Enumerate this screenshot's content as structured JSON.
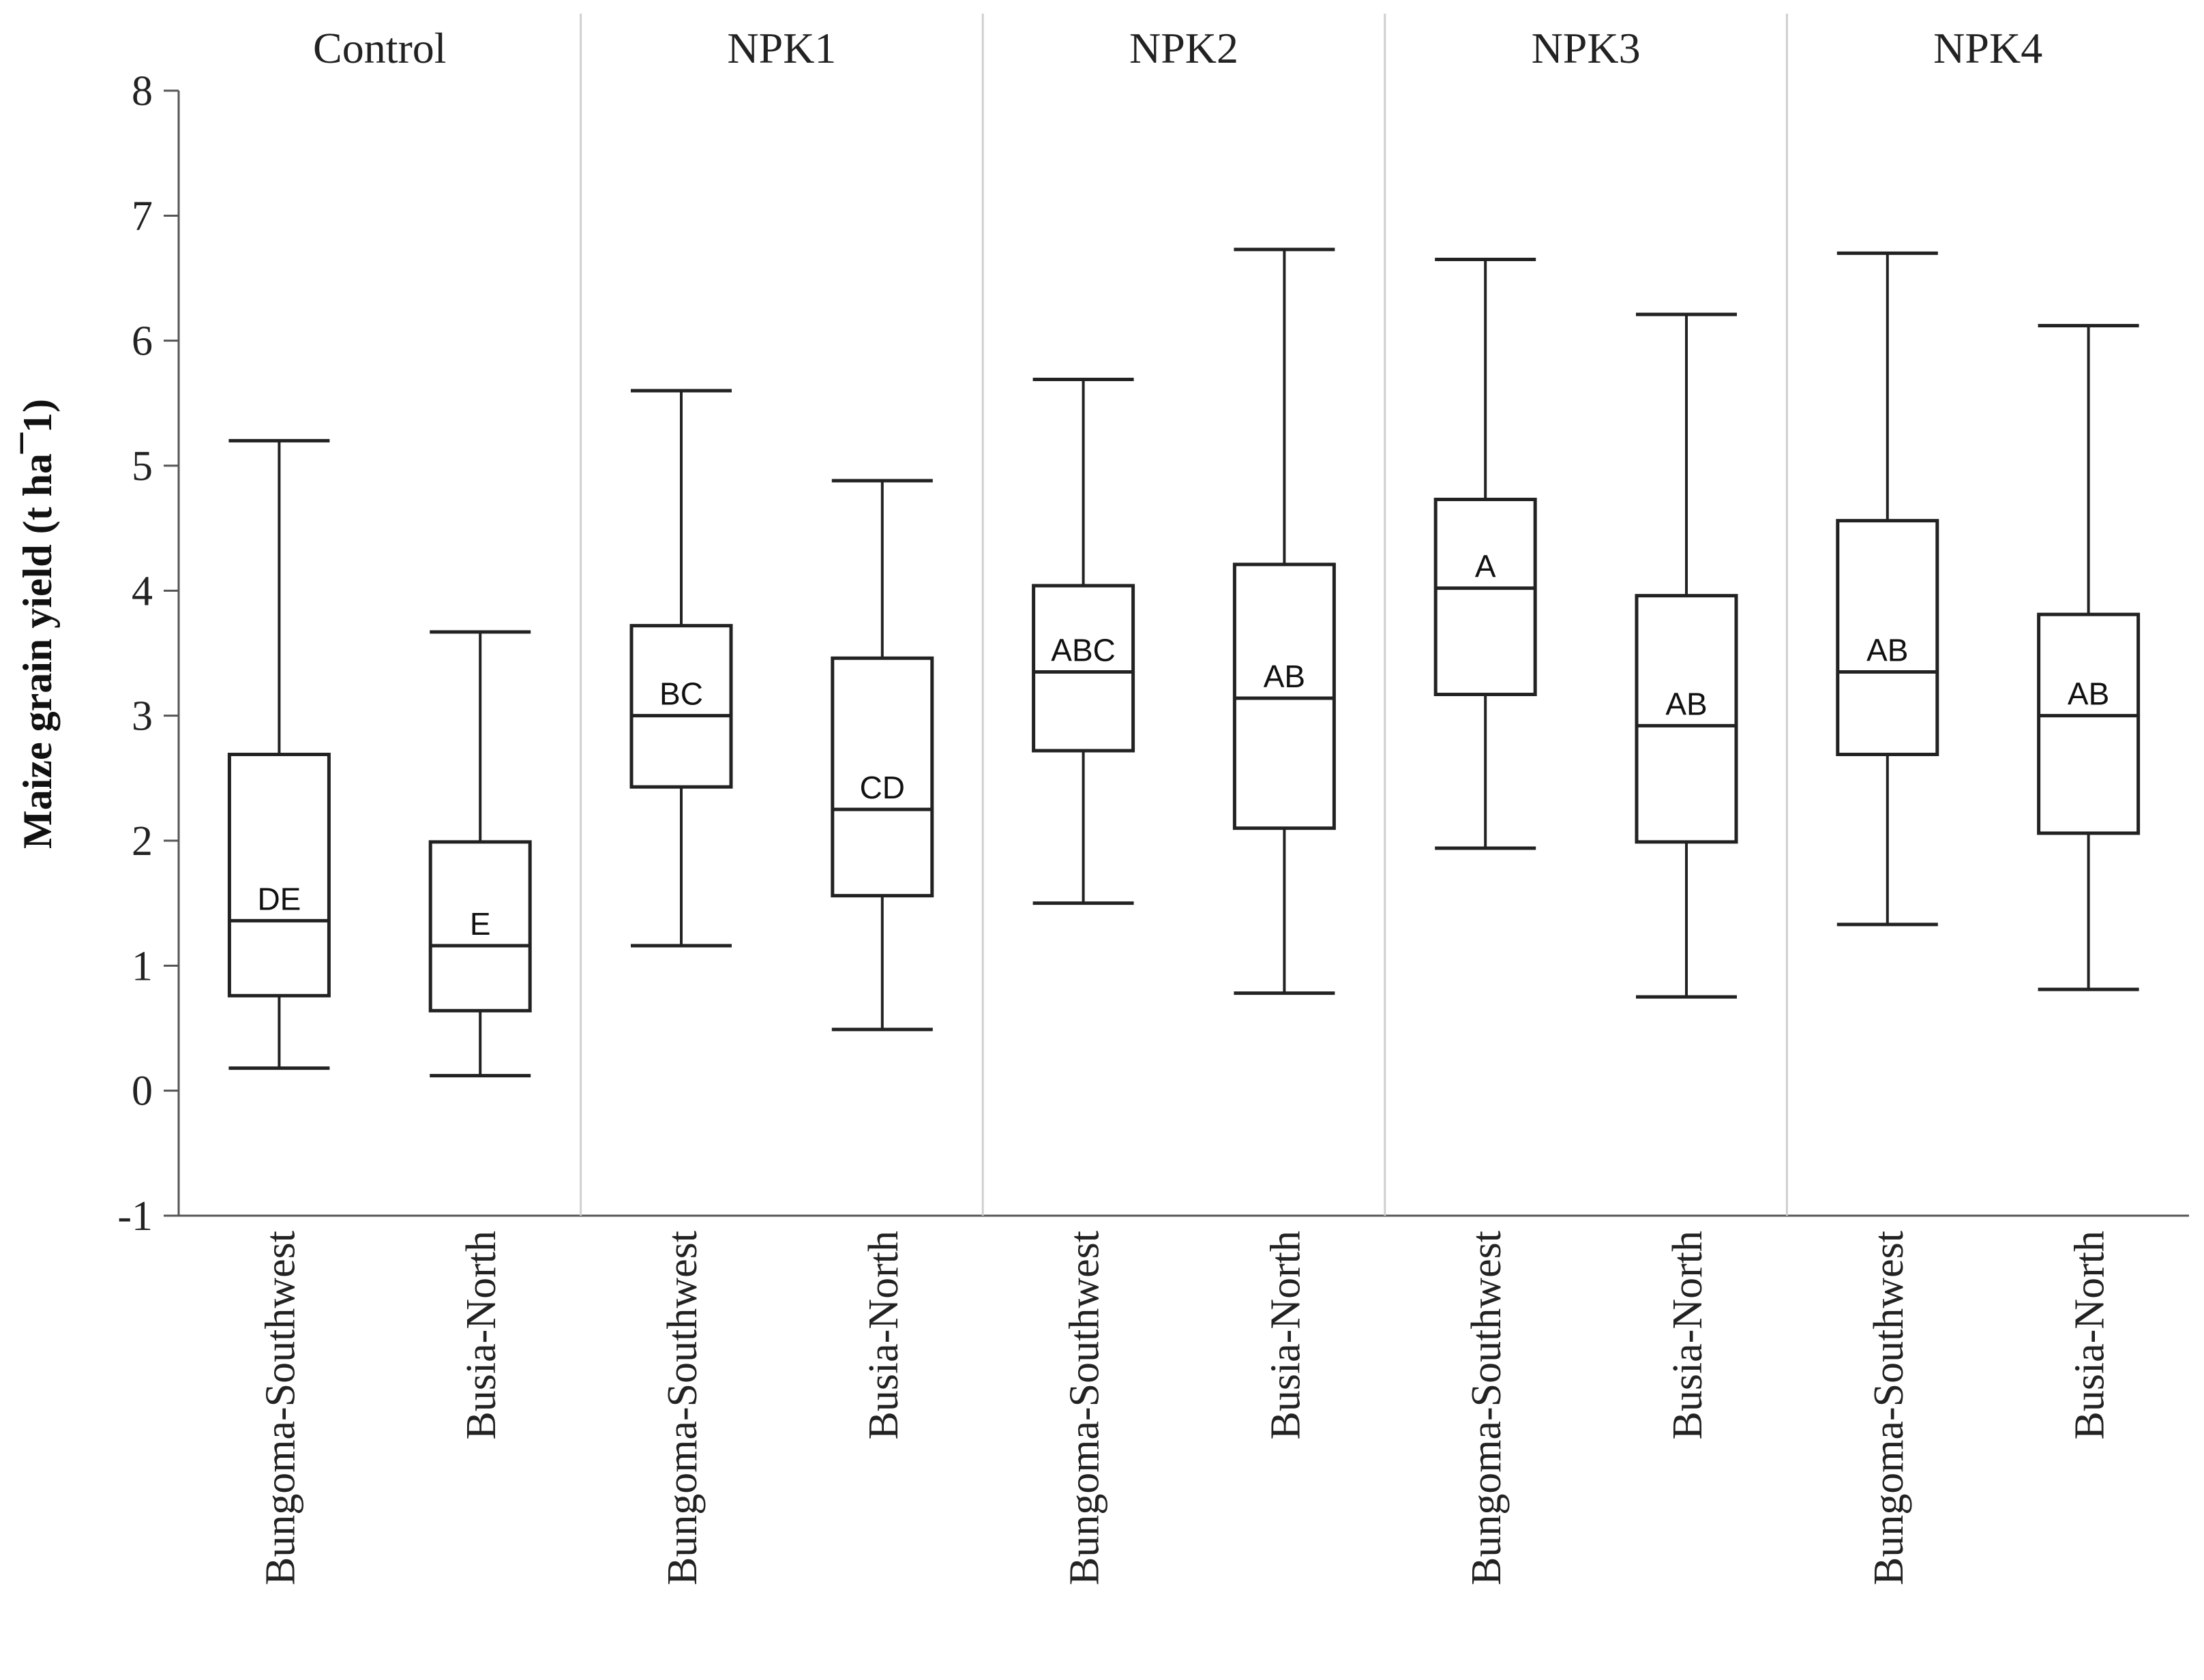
{
  "chart_data": {
    "type": "box",
    "ylabel": "Maize grain yield (t ha¯1)",
    "xlabel": "",
    "ylim": [
      -1,
      8
    ],
    "yticks": [
      -1,
      0,
      1,
      2,
      3,
      4,
      5,
      6,
      7,
      8
    ],
    "panels": [
      {
        "name": "Control",
        "boxes": [
          {
            "category": "Bungoma-Southwest",
            "min": 0.18,
            "q1": 0.76,
            "median": 1.36,
            "q3": 2.69,
            "max": 5.2,
            "letter": "DE"
          },
          {
            "category": "Busia-North",
            "min": 0.12,
            "q1": 0.64,
            "median": 1.16,
            "q3": 1.99,
            "max": 3.67,
            "letter": "E"
          }
        ]
      },
      {
        "name": "NPK1",
        "boxes": [
          {
            "category": "Bungoma-Southwest",
            "min": 1.16,
            "q1": 2.43,
            "median": 3.0,
            "q3": 3.72,
            "max": 5.6,
            "letter": "BC"
          },
          {
            "category": "Busia-North",
            "min": 0.49,
            "q1": 1.56,
            "median": 2.25,
            "q3": 3.46,
            "max": 4.88,
            "letter": "CD"
          }
        ]
      },
      {
        "name": "NPK2",
        "boxes": [
          {
            "category": "Bungoma-Southwest",
            "min": 1.5,
            "q1": 2.72,
            "median": 3.35,
            "q3": 4.04,
            "max": 5.69,
            "letter": "ABC"
          },
          {
            "category": "Busia-North",
            "min": 0.78,
            "q1": 2.1,
            "median": 3.14,
            "q3": 4.21,
            "max": 6.73,
            "letter": "AB"
          }
        ]
      },
      {
        "name": "NPK3",
        "boxes": [
          {
            "category": "Bungoma-Southwest",
            "min": 1.94,
            "q1": 3.17,
            "median": 4.02,
            "q3": 4.73,
            "max": 6.65,
            "letter": "A"
          },
          {
            "category": "Busia-North",
            "min": 0.75,
            "q1": 1.99,
            "median": 2.92,
            "q3": 3.96,
            "max": 6.21,
            "letter": "AB"
          }
        ]
      },
      {
        "name": "NPK4",
        "boxes": [
          {
            "category": "Bungoma-Southwest",
            "min": 1.33,
            "q1": 2.69,
            "median": 3.35,
            "q3": 4.56,
            "max": 6.7,
            "letter": "AB"
          },
          {
            "category": "Busia-North",
            "min": 0.81,
            "q1": 2.06,
            "median": 3.0,
            "q3": 3.81,
            "max": 6.12,
            "letter": "AB"
          }
        ]
      }
    ]
  }
}
